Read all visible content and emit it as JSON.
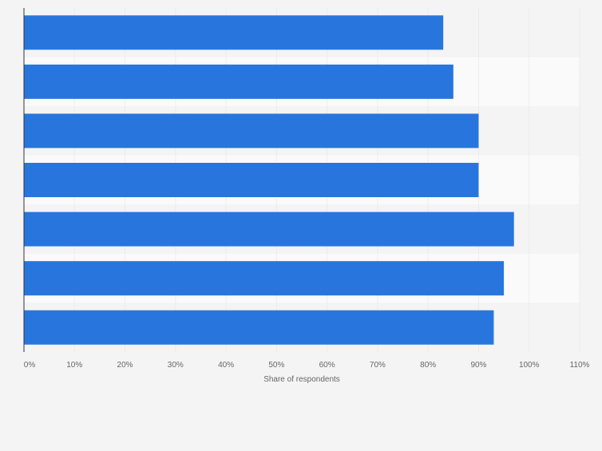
{
  "chart_data": {
    "type": "bar",
    "orientation": "horizontal",
    "categories": [
      "",
      "",
      "",
      "",
      "",
      "",
      ""
    ],
    "values": [
      83,
      85,
      90,
      90,
      97,
      95,
      93
    ],
    "xlabel": "Share of respondents",
    "ylabel": "",
    "xlim": [
      0,
      110
    ],
    "xticks": [
      "0%",
      "10%",
      "20%",
      "30%",
      "40%",
      "50%",
      "60%",
      "70%",
      "80%",
      "90%",
      "100%",
      "110%"
    ],
    "grid": true,
    "legend": "none",
    "bar_color": "#2876dd",
    "band_colors": [
      "#f4f4f4",
      "#fafafa"
    ]
  }
}
